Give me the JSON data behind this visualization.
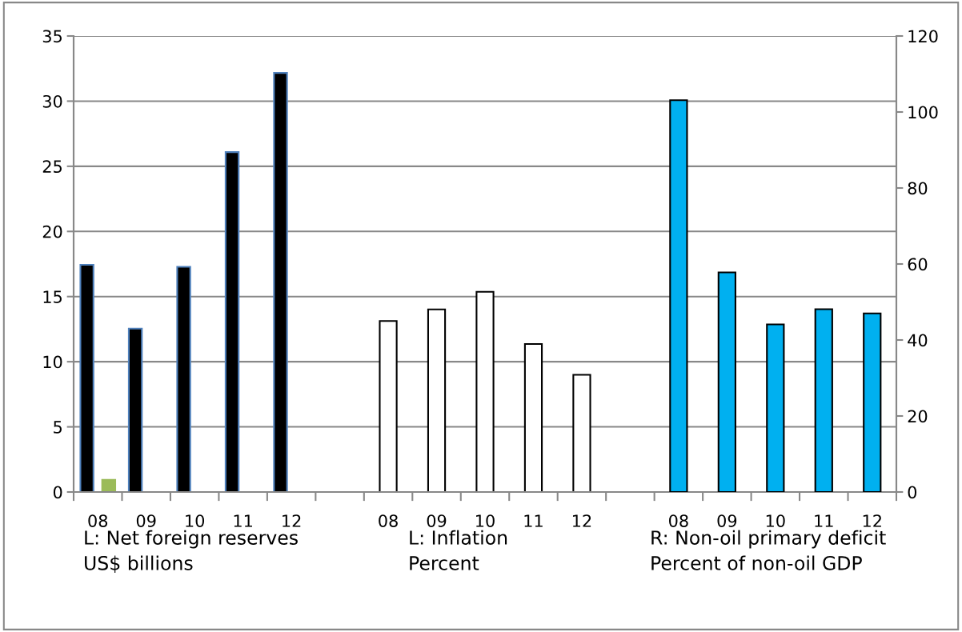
{
  "chart_data": {
    "type": "bar",
    "categories": [
      "08",
      "09",
      "10",
      "11",
      "12",
      null,
      "08",
      "09",
      "10",
      "11",
      "12",
      null,
      "08",
      "09",
      "10",
      "11",
      "12"
    ],
    "series": [
      {
        "color": "#000000",
        "values": [
          17.44,
          12.54,
          17.28,
          26.09,
          32.17,
          null,
          null,
          null,
          null,
          null,
          null,
          null,
          null,
          null,
          null,
          null,
          null
        ]
      },
      {
        "color": "#9bbb59",
        "values": [
          0.94,
          null,
          null,
          null,
          null,
          null,
          null,
          null,
          null,
          null,
          null,
          null,
          null,
          null,
          null,
          null,
          null
        ]
      },
      {
        "color": "#ffffff",
        "values": [
          null,
          null,
          null,
          null,
          null,
          null,
          13.13,
          14.02,
          15.37,
          11.36,
          9.0,
          null,
          null,
          null,
          null,
          null,
          null
        ]
      },
      {
        "color": "#00b0f0",
        "axis": "y2",
        "values": [
          null,
          null,
          null,
          null,
          null,
          null,
          null,
          null,
          null,
          null,
          null,
          null,
          103.1,
          57.8,
          44.1,
          48.1,
          47.0
        ]
      }
    ],
    "ylim": [
      0,
      35
    ],
    "yticks": [
      0,
      5,
      10,
      15,
      20,
      25,
      30,
      35
    ],
    "y2lim": [
      0,
      120
    ],
    "y2ticks": [
      0,
      20,
      40,
      60,
      80,
      100,
      120
    ],
    "grid": "y",
    "legend": false,
    "annotations": [
      "L: Net foreign reserves\nUS$ billions",
      "L: Inflation\nPercent",
      "R: Non-oil primary deficit\nPercent of non-oil GDP"
    ]
  }
}
